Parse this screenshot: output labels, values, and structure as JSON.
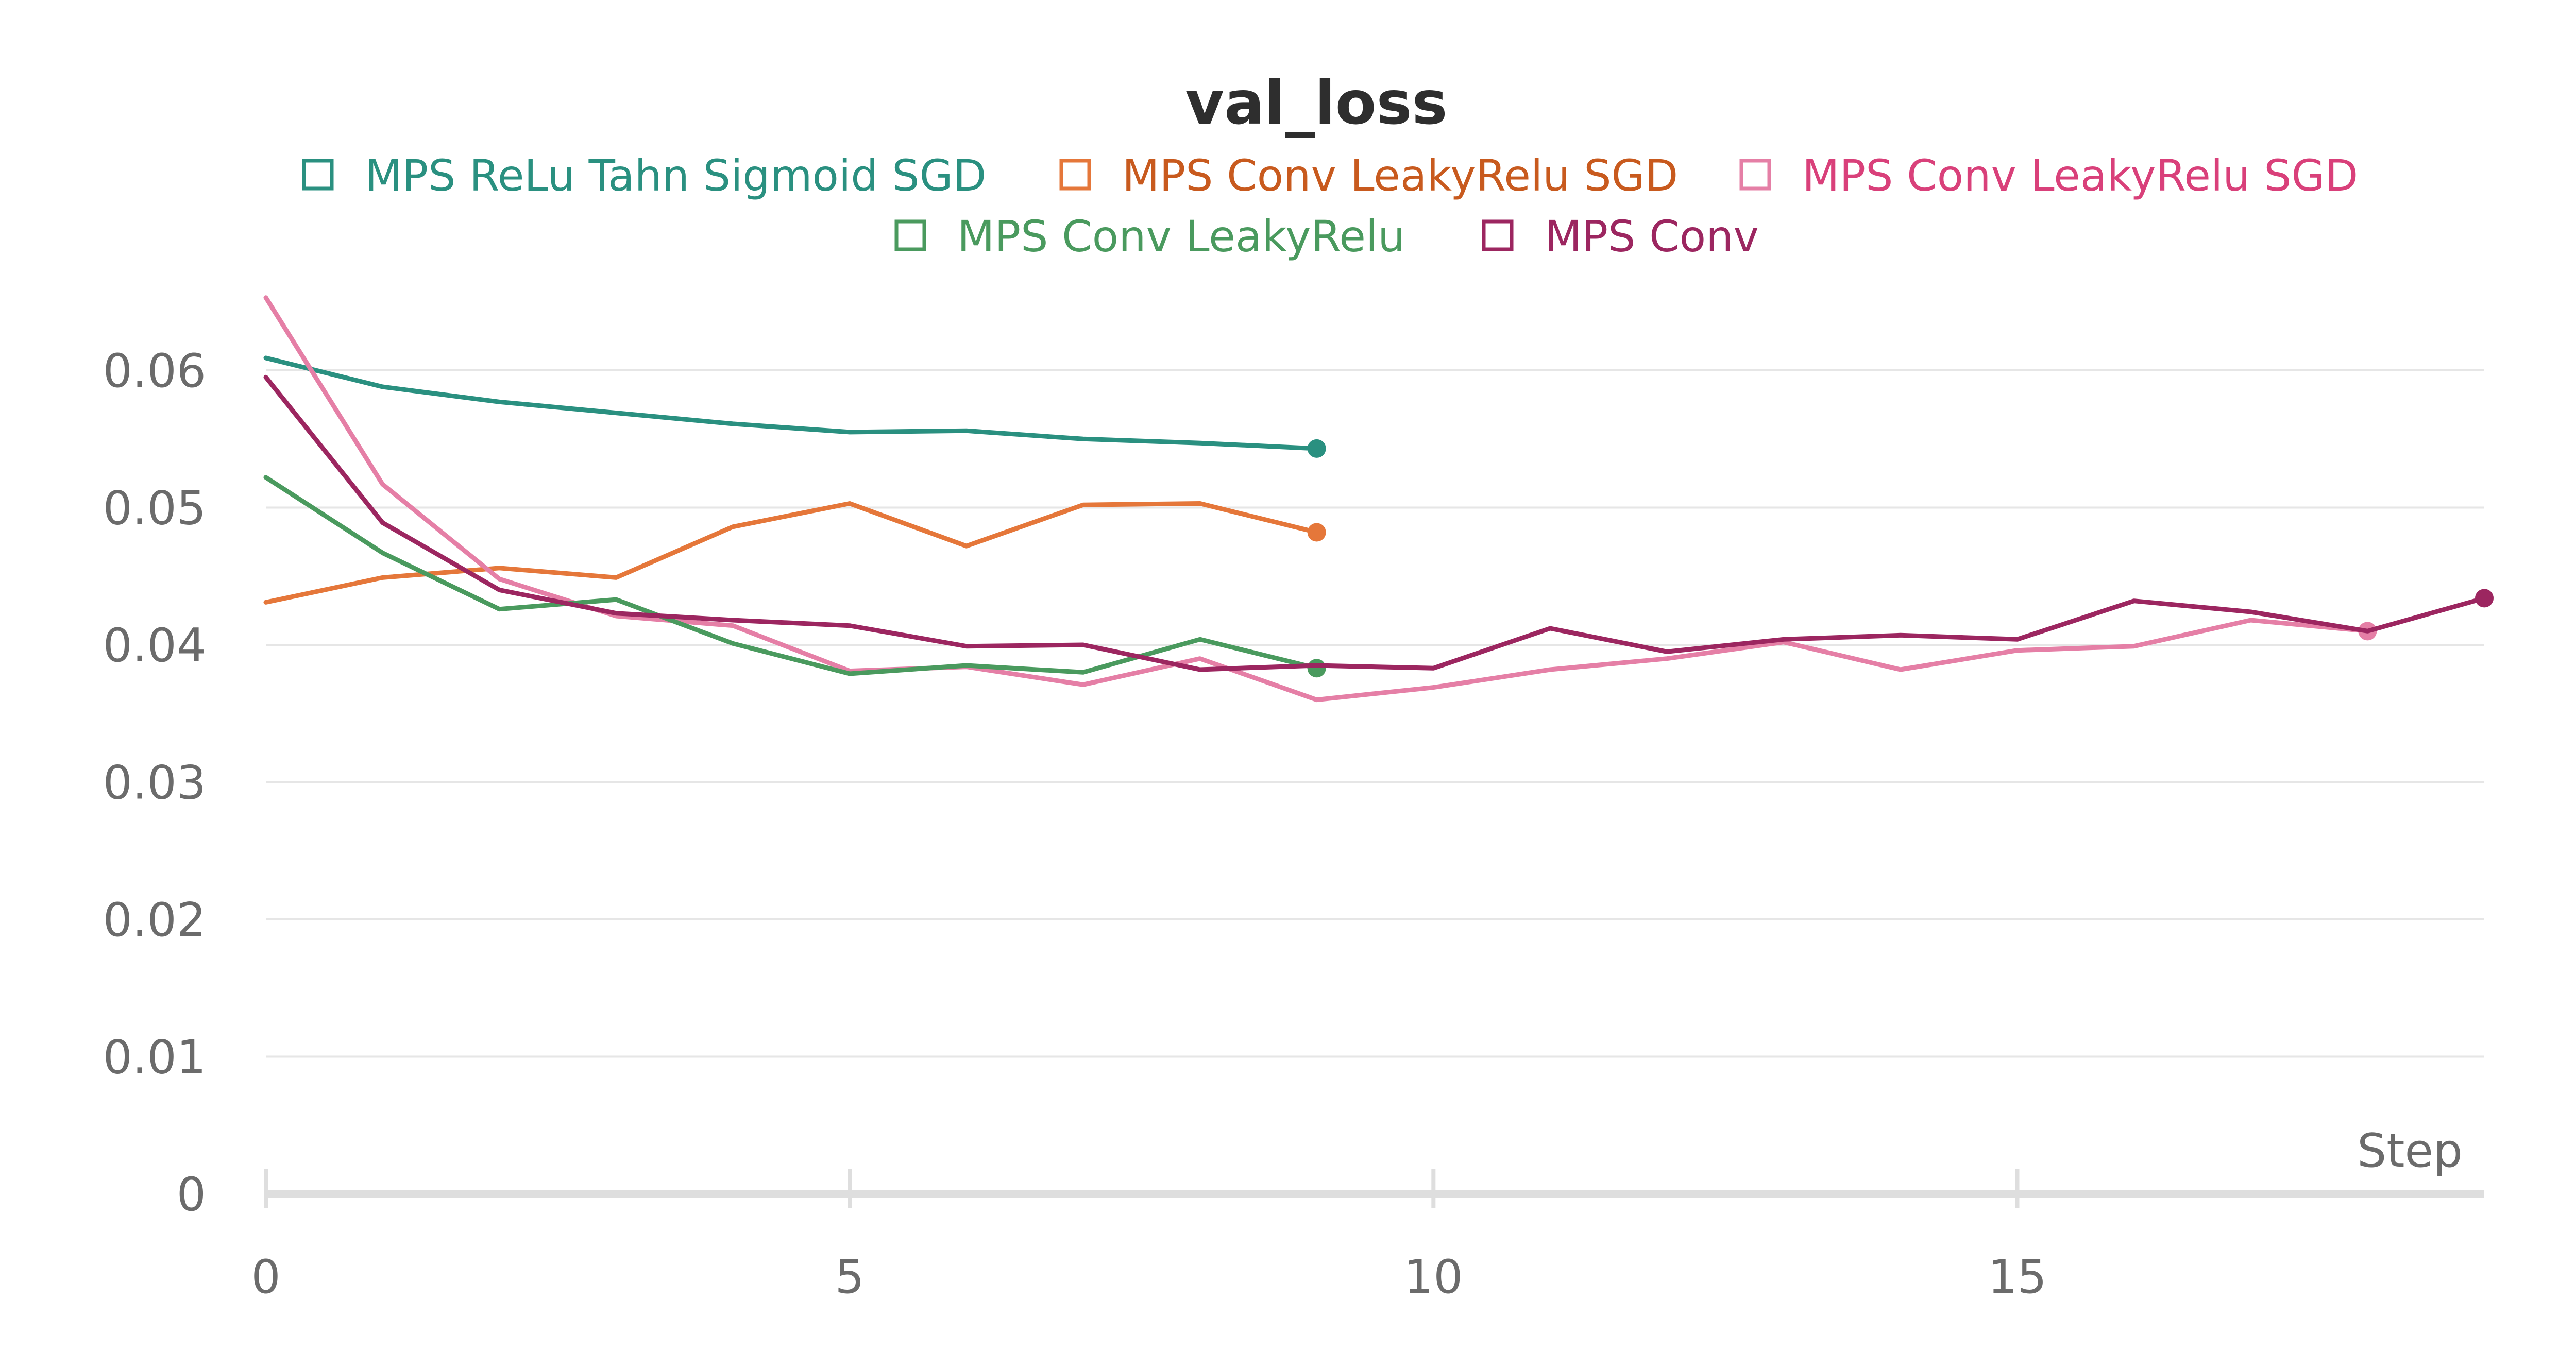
{
  "chart_data": {
    "type": "line",
    "title": "val_loss",
    "xlabel": "Step",
    "ylabel": "",
    "xlim": [
      0,
      19
    ],
    "ylim": [
      0,
      0.065
    ],
    "xticks": [
      0,
      5,
      10,
      15
    ],
    "xtick_labels": [
      "0",
      "5",
      "10",
      "15"
    ],
    "yticks": [
      0,
      0.01,
      0.02,
      0.03,
      0.04,
      0.05,
      0.06
    ],
    "ytick_labels": [
      "0",
      "0.01",
      "0.02",
      "0.03",
      "0.04",
      "0.05",
      "0.06"
    ],
    "grid": true,
    "legend_position": "top-center",
    "series": [
      {
        "name": "MPS ReLu Tahn Sigmoid SGD",
        "color": "#2a9080",
        "text_color": "#2a9080",
        "x": [
          0,
          1,
          2,
          3,
          4,
          5,
          6,
          7,
          8,
          9
        ],
        "values": [
          0.0609,
          0.0588,
          0.0577,
          0.0569,
          0.0561,
          0.0555,
          0.0556,
          0.055,
          0.0547,
          0.0543
        ]
      },
      {
        "name": "MPS Conv LeakyRelu SGD",
        "color": "#e5773a",
        "text_color": "#c85a1e",
        "x": [
          0,
          1,
          2,
          3,
          4,
          5,
          6,
          7,
          8,
          9
        ],
        "values": [
          0.0431,
          0.0449,
          0.0456,
          0.0449,
          0.0486,
          0.0503,
          0.0472,
          0.0502,
          0.0503,
          0.0482
        ]
      },
      {
        "name": "MPS Conv LeakyRelu SGD",
        "color": "#e57fa6",
        "text_color": "#d9407a",
        "x": [
          0,
          1,
          2,
          3,
          4,
          5,
          6,
          7,
          8,
          9,
          10,
          11,
          12,
          13,
          14,
          15,
          16,
          17,
          18
        ],
        "values": [
          0.0653,
          0.0517,
          0.0448,
          0.0421,
          0.0414,
          0.0381,
          0.0384,
          0.0371,
          0.039,
          0.036,
          0.0369,
          0.0382,
          0.039,
          0.0402,
          0.0382,
          0.0396,
          0.0399,
          0.0418,
          0.041
        ]
      },
      {
        "name": "MPS Conv LeakyRelu",
        "color": "#4a9a5e",
        "text_color": "#4a9a5e",
        "x": [
          0,
          1,
          2,
          3,
          4,
          5,
          6,
          7,
          8,
          9
        ],
        "values": [
          0.0522,
          0.0467,
          0.0426,
          0.0433,
          0.0401,
          0.0379,
          0.0385,
          0.038,
          0.0404,
          0.0383
        ]
      },
      {
        "name": "MPS Conv",
        "color": "#9c2660",
        "text_color": "#9c2660",
        "x": [
          0,
          1,
          2,
          3,
          4,
          5,
          6,
          7,
          8,
          9,
          10,
          11,
          12,
          13,
          14,
          15,
          16,
          17,
          18,
          19
        ],
        "values": [
          0.0595,
          0.0489,
          0.044,
          0.0423,
          0.0418,
          0.0414,
          0.0399,
          0.04,
          0.0382,
          0.0385,
          0.0383,
          0.0412,
          0.0395,
          0.0404,
          0.0407,
          0.0404,
          0.0432,
          0.0424,
          0.041,
          0.0434
        ]
      }
    ]
  }
}
